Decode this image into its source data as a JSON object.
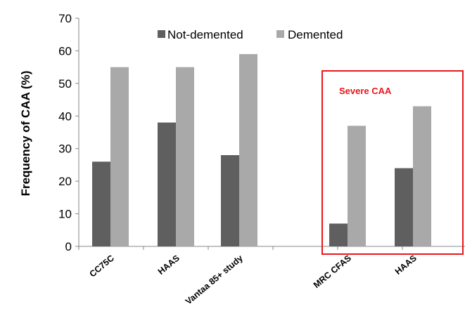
{
  "chart_data": {
    "type": "bar",
    "title": "",
    "xlabel": "",
    "ylabel": "Frequency of CAA (%)",
    "ylim": [
      0,
      70
    ],
    "yticks": [
      0,
      10,
      20,
      30,
      40,
      50,
      60,
      70
    ],
    "grid": false,
    "legend_position": "top",
    "categories": [
      "CC75C",
      "HAAS",
      "Vantaa 85+ study",
      "MRC CFAS",
      "HAAS"
    ],
    "series": [
      {
        "name": "Not-demented",
        "color": "#5f5f5f",
        "values": [
          26,
          38,
          28,
          7,
          24
        ]
      },
      {
        "name": "Demented",
        "color": "#a9a9a9",
        "values": [
          55,
          55,
          59,
          37,
          43
        ]
      }
    ],
    "annotations": [
      {
        "text": "Severe CAA",
        "color": "#e8161b",
        "groups": [
          "MRC CFAS",
          "HAAS"
        ]
      }
    ]
  }
}
